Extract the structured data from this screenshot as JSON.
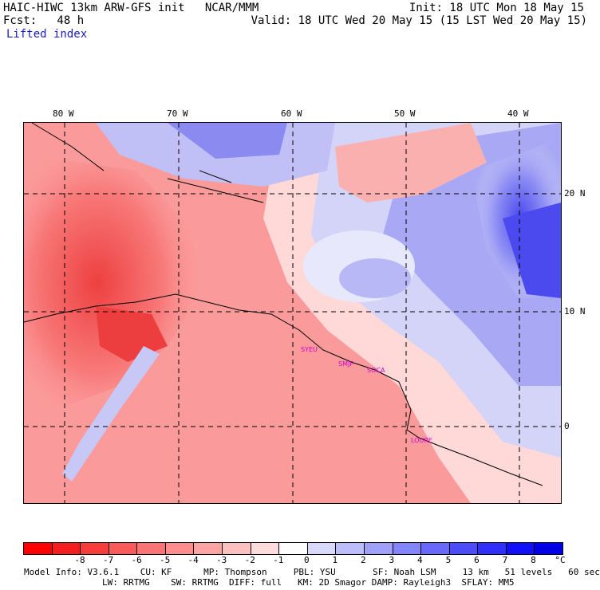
{
  "header": {
    "model_line": "HAIC-HIWC 13km ARW-GFS init   NCAR/MMM",
    "init_line": "Init: 18 UTC Mon 18 May 15",
    "fcst_line": "Fcst:   48 h",
    "valid_line": "Valid: 18 UTC Wed 20 May 15 (15 LST Wed 20 May 15)",
    "field_name": "Lifted index"
  },
  "map": {
    "longitude_labels": [
      "80 W",
      "70 W",
      "60 W",
      "50 W",
      "40 W"
    ],
    "latitude_labels": [
      "20 N",
      "10 N",
      "0"
    ],
    "stations": [
      "SYEU",
      "SMJP",
      "SOCA",
      "LOURE"
    ],
    "grid_style": "dashed",
    "colors": {
      "warm_max": "#e83030",
      "neutral": "#ffffff",
      "cool_max": "#3a3ae8"
    }
  },
  "colorbar": {
    "labels": [
      "-8",
      "-7",
      "-6",
      "-5",
      "-4",
      "-3",
      "-2",
      "-1",
      "0",
      "1",
      "2",
      "3",
      "4",
      "5",
      "6",
      "7",
      "8"
    ],
    "unit": "°C",
    "colors": [
      "#ff0000",
      "#f41e1e",
      "#f83c3c",
      "#fb5a5a",
      "#fc7474",
      "#fd8c8c",
      "#fea4a4",
      "#ffc0c0",
      "#ffdcdc",
      "#ffffff",
      "#d8d8f8",
      "#bcbcfa",
      "#a0a0fb",
      "#8484fc",
      "#6868fd",
      "#4c4cfd",
      "#3030fe",
      "#1010ff",
      "#0000e8"
    ]
  },
  "footer": {
    "line1": "Model Info: V3.6.1    CU: KF      MP: Thompson     PBL: YSU       SF: Noah LSM     13 km   51 levels   60 sec",
    "line2": "LW: RRTMG    SW: RRTMG  DIFF: full   KM: 2D Smagor DAMP: Rayleigh3  SFLAY: MM5"
  }
}
